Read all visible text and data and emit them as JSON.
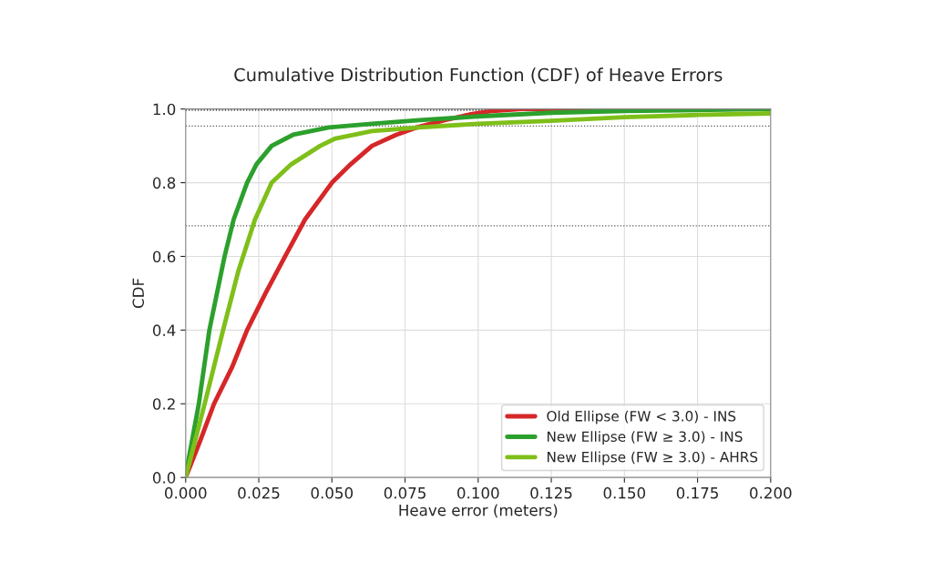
{
  "chart_data": {
    "type": "line",
    "title": "Cumulative Distribution Function (CDF) of Heave Errors",
    "xlabel": "Heave error (meters)",
    "ylabel": "CDF",
    "series": [
      {
        "name": "Old Ellipse (FW < 3.0) - INS",
        "color": "#d62728",
        "x": [
          0,
          0.005,
          0.0097,
          0.0159,
          0.021,
          0.0273,
          0.034,
          0.0408,
          0.05,
          0.0564,
          0.0637,
          0.072,
          0.079,
          0.0886,
          0.097,
          0.105,
          0.115,
          0.2
        ],
        "values": [
          0,
          0.1,
          0.2,
          0.3,
          0.4,
          0.5,
          0.6,
          0.7,
          0.8,
          0.85,
          0.9,
          0.93,
          0.95,
          0.97,
          0.985,
          0.995,
          1.0,
          1.0
        ]
      },
      {
        "name": "New Ellipse (FW ≥ 3.0) - INS",
        "color": "#2ca02c",
        "x": [
          0,
          0.0045,
          0.0081,
          0.0133,
          0.0164,
          0.021,
          0.0242,
          0.0294,
          0.0367,
          0.049,
          0.0637,
          0.08,
          0.1,
          0.125,
          0.15,
          0.2
        ],
        "values": [
          0.006,
          0.2,
          0.4,
          0.6,
          0.7,
          0.8,
          0.85,
          0.9,
          0.93,
          0.95,
          0.96,
          0.97,
          0.98,
          0.99,
          0.995,
          1.0
        ]
      },
      {
        "name": "New Ellipse (FW ≥ 3.0) - AHRS",
        "color": "#7fbf1a",
        "x": [
          0,
          0.0065,
          0.0128,
          0.018,
          0.0237,
          0.0294,
          0.0361,
          0.046,
          0.0512,
          0.0637,
          0.08,
          0.1,
          0.125,
          0.15,
          0.175,
          0.2
        ],
        "values": [
          0,
          0.2,
          0.4,
          0.56,
          0.7,
          0.8,
          0.85,
          0.9,
          0.92,
          0.94,
          0.95,
          0.96,
          0.968,
          0.978,
          0.984,
          0.988
        ]
      }
    ],
    "xlim": [
      0,
      0.2
    ],
    "ylim": [
      0,
      1.0
    ],
    "xticks": [
      {
        "value": 0,
        "label": "0.000"
      },
      0.025,
      {
        "value": 0.05,
        "label": "0.050"
      },
      {
        "value": 0.075,
        "label": "0.075"
      },
      {
        "value": 0.1,
        "label": "0.100"
      },
      {
        "value": 0.125,
        "label": "0.125"
      },
      {
        "value": 0.15,
        "label": "0.150"
      },
      {
        "value": 0.175,
        "label": "0.175"
      },
      {
        "value": 0.2,
        "label": "0.200"
      }
    ],
    "yticks": [
      {
        "value": 0,
        "label": "0.0"
      },
      0.2,
      0.4,
      0.6,
      0.8,
      {
        "value": 1.0,
        "label": "1.0"
      }
    ],
    "ref_lines": [
      {
        "axis": "y",
        "value": 0.683,
        "color": "#555555",
        "line_style": "dotted"
      },
      {
        "axis": "y",
        "value": 0.954,
        "color": "#555555",
        "line_style": "dotted"
      },
      {
        "axis": "y",
        "value": 0.997,
        "color": "#000000",
        "line_style": "dotted"
      }
    ],
    "grid": true,
    "legend": "bottom right",
    "line_style": "solid",
    "marker": "none"
  }
}
